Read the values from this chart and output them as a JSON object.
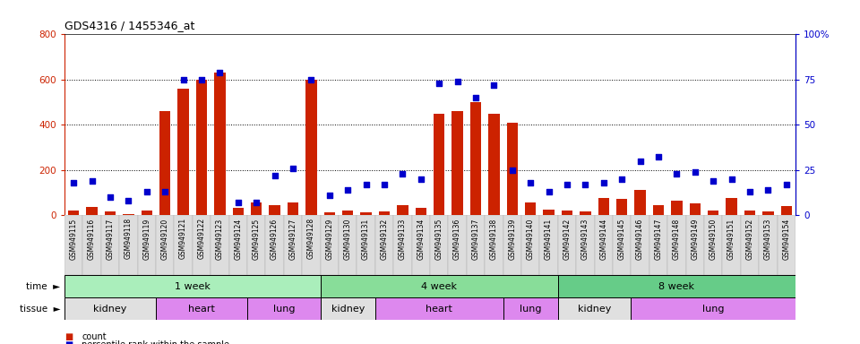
{
  "title": "GDS4316 / 1455346_at",
  "samples": [
    "GSM949115",
    "GSM949116",
    "GSM949117",
    "GSM949118",
    "GSM949119",
    "GSM949120",
    "GSM949121",
    "GSM949122",
    "GSM949123",
    "GSM949124",
    "GSM949125",
    "GSM949126",
    "GSM949127",
    "GSM949128",
    "GSM949129",
    "GSM949130",
    "GSM949131",
    "GSM949132",
    "GSM949133",
    "GSM949134",
    "GSM949135",
    "GSM949136",
    "GSM949137",
    "GSM949138",
    "GSM949139",
    "GSM949140",
    "GSM949141",
    "GSM949142",
    "GSM949143",
    "GSM949144",
    "GSM949145",
    "GSM949146",
    "GSM949147",
    "GSM949148",
    "GSM949149",
    "GSM949150",
    "GSM949151",
    "GSM949152",
    "GSM949153",
    "GSM949154"
  ],
  "counts": [
    20,
    35,
    15,
    5,
    20,
    460,
    560,
    600,
    630,
    30,
    55,
    45,
    55,
    600,
    10,
    20,
    10,
    15,
    45,
    30,
    450,
    460,
    500,
    450,
    410,
    55,
    25,
    20,
    15,
    75,
    70,
    110,
    45,
    65,
    50,
    20,
    75,
    20,
    15,
    40
  ],
  "percentiles": [
    18,
    19,
    10,
    8,
    13,
    13,
    75,
    75,
    79,
    7,
    7,
    22,
    26,
    75,
    11,
    14,
    17,
    17,
    23,
    20,
    73,
    74,
    65,
    72,
    25,
    18,
    13,
    17,
    17,
    18,
    20,
    30,
    32,
    23,
    24,
    19,
    20,
    13,
    14,
    17
  ],
  "ylim_left": [
    0,
    800
  ],
  "ylim_right": [
    0,
    100
  ],
  "yticks_left": [
    0,
    200,
    400,
    600,
    800
  ],
  "yticks_right": [
    0,
    25,
    50,
    75,
    100
  ],
  "bar_color": "#cc2200",
  "dot_color": "#0000cc",
  "bg_color": "#ffffff",
  "time_groups": [
    {
      "label": "1 week",
      "start": 0,
      "end": 14,
      "color": "#aaeebb"
    },
    {
      "label": "4 week",
      "start": 14,
      "end": 27,
      "color": "#88dd99"
    },
    {
      "label": "8 week",
      "start": 27,
      "end": 40,
      "color": "#66cc88"
    }
  ],
  "tissue_groups": [
    {
      "label": "kidney",
      "start": 0,
      "end": 5,
      "color": "#e0e0e0"
    },
    {
      "label": "heart",
      "start": 5,
      "end": 10,
      "color": "#dd88ee"
    },
    {
      "label": "lung",
      "start": 10,
      "end": 14,
      "color": "#dd88ee"
    },
    {
      "label": "kidney",
      "start": 14,
      "end": 17,
      "color": "#e0e0e0"
    },
    {
      "label": "heart",
      "start": 17,
      "end": 24,
      "color": "#dd88ee"
    },
    {
      "label": "lung",
      "start": 24,
      "end": 27,
      "color": "#dd88ee"
    },
    {
      "label": "kidney",
      "start": 27,
      "end": 31,
      "color": "#e0e0e0"
    },
    {
      "label": "lung",
      "start": 31,
      "end": 40,
      "color": "#dd88ee"
    }
  ]
}
